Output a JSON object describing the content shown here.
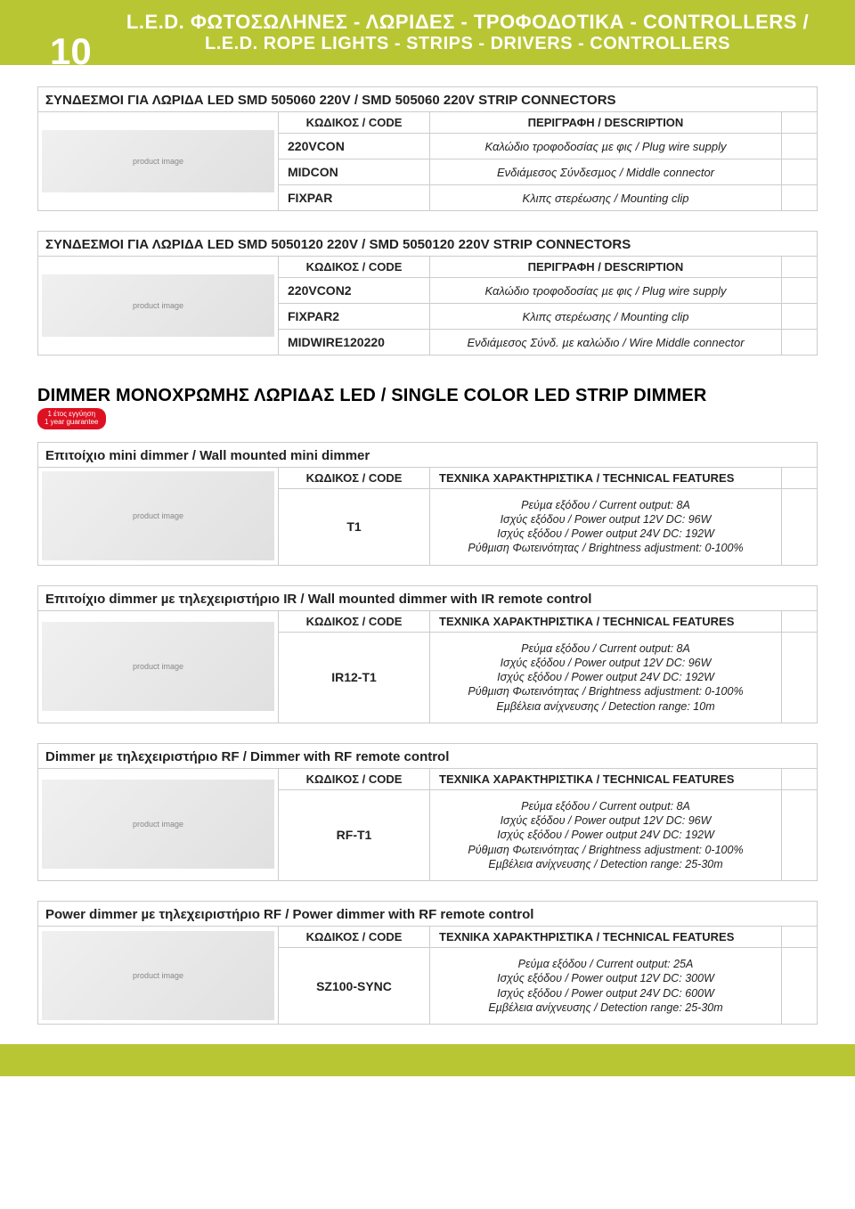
{
  "page_number": "10",
  "header": {
    "line1": "L.E.D. ΦΩΤΟΣΩΛΗΝΕΣ - ΛΩΡΙΔΕΣ - ΤΡΟΦΟΔΟΤΙΚΑ - CONTROLLERS /",
    "line2": "L.E.D. ROPE LIGHTS - STRIPS - DRIVERS - CONTROLLERS"
  },
  "labels": {
    "code": "ΚΩΔΙΚΟΣ / CODE",
    "description": "ΠΕΡΙΓΡΑΦΗ / DESCRIPTION",
    "features": "ΤΕΧΝΙΚΑ ΧΑΡΑΚΤΗΡΙΣΤΙΚΑ / TECHNICAL FEATURES"
  },
  "section1": {
    "title": "ΣΥΝΔΕΣΜΟΙ ΓΙΑ ΛΩΡΙΔΑ LED SMD 505060 220V / SMD 505060 220V STRIP CONNECTORS",
    "rows": [
      {
        "code": "220VCON",
        "desc": "Καλώδιο τροφοδοσίας µε φις / Plug wire supply"
      },
      {
        "code": "MIDCON",
        "desc": "Ενδιάµεσος Σύνδεσµος / Middle connector"
      },
      {
        "code": "FIXPAR",
        "desc": "Κλιπς στερέωσης / Mounting clip"
      }
    ]
  },
  "section2": {
    "title": "ΣΥΝΔΕΣΜΟΙ ΓΙΑ ΛΩΡΙΔΑ LED SMD 5050120 220V / SMD 5050120 220V STRIP CONNECTORS",
    "rows": [
      {
        "code": "220VCON2",
        "desc": "Καλώδιο τροφοδοσίας µε φις / Plug wire supply"
      },
      {
        "code": "FIXPAR2",
        "desc": "Κλιπς στερέωσης / Mounting clip"
      },
      {
        "code": "MIDWIRE120220",
        "desc": "Ενδιάµεσος Σύνδ. µε καλώδιο / Wire Middle connector"
      }
    ]
  },
  "dimmer_heading": "DIMMER ΜΟΝΟΧΡΩΜΗΣ ΛΩΡΙΔΑΣ LED / SINGLE COLOR LED STRIP DIMMER",
  "guarantee": {
    "line1": "1 έτος εγγύηση",
    "line2": "1 year guarantee"
  },
  "dimmers": [
    {
      "title": "Επιτοίχιο mini dimmer / Wall mounted mini dimmer",
      "code": "T1",
      "features": "Ρεύµα εξόδου / Current output: 8A\nΙσχύς εξόδου / Power output 12V DC: 96W\nΙσχύς εξόδου / Power output 24V DC: 192W\nΡύθµιση Φωτεινότητας / Brightness adjustment: 0-100%"
    },
    {
      "title": "Επιτοίχιο dimmer µε τηλεχειριστήριο IR / Wall mounted dimmer with IR remote control",
      "code": "IR12-T1",
      "features": "Ρεύµα εξόδου / Current output: 8A\nΙσχύς εξόδου / Power output 12V DC: 96W\nΙσχύς εξόδου / Power output 24V DC: 192W\nΡύθµιση Φωτεινότητας / Brightness adjustment: 0-100%\nΕµβέλεια ανίχνευσης / Detection range: 10m"
    },
    {
      "title": "Dimmer µε τηλεχειριστήριο RF / Dimmer with RF remote control",
      "code": "RF-T1",
      "features": "Ρεύµα εξόδου / Current output: 8A\nΙσχύς εξόδου / Power output 12V DC: 96W\nΙσχύς εξόδου / Power output 24V DC: 192W\nΡύθµιση Φωτεινότητας / Brightness adjustment: 0-100%\nΕµβέλεια ανίχνευσης / Detection range: 25-30m"
    },
    {
      "title": "Power dimmer µε τηλεχειριστήριο RF / Power dimmer with RF remote control",
      "code": "SZ100-SYNC",
      "features": "Ρεύµα εξόδου / Current output: 25A\nΙσχύς εξόδου / Power output 12V DC: 300W\nΙσχύς εξόδου / Power output 24V DC: 600W\nΕµβέλεια ανίχνευσης / Detection range: 25-30m"
    }
  ],
  "colors": {
    "accent": "#b8c633",
    "badge": "#d12",
    "border": "#ccc"
  }
}
